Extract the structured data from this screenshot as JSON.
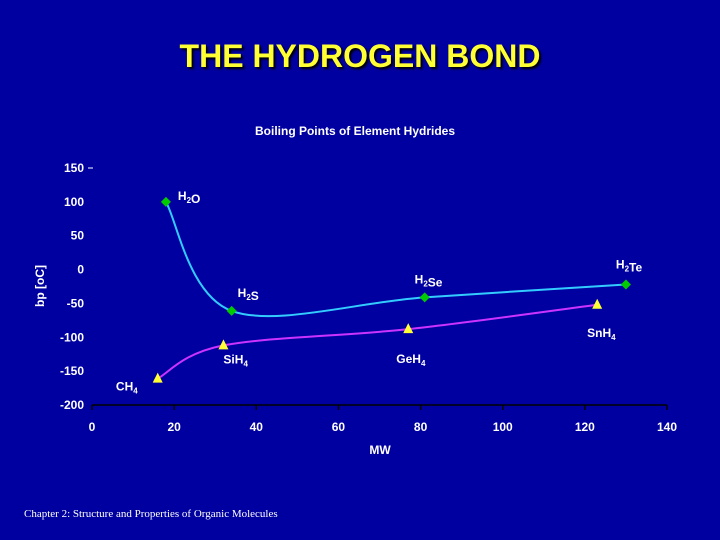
{
  "slide_title": "THE HYDROGEN BOND",
  "footer": "Chapter 2: Structure and Properties of Organic Molecules",
  "colors": {
    "background": "#0000a0",
    "title": "#ffff33",
    "series_o": "#33ccff",
    "series_c": "#cc33ff",
    "diamond_marker": "#00cc00",
    "triangle_marker": "#ffff33"
  },
  "chart_data": {
    "type": "line",
    "title": "Boiling Points of Element Hydrides",
    "xlabel": "MW",
    "ylabel": "bp [oC]",
    "xlim": [
      0,
      140
    ],
    "ylim": [
      -200,
      150
    ],
    "x_ticks": [
      "0",
      "20",
      "40",
      "60",
      "80",
      "100",
      "120",
      "140"
    ],
    "y_ticks": [
      "150",
      "100",
      "50",
      "0",
      "-50",
      "-100",
      "-150",
      "-200"
    ],
    "grid": false,
    "series": [
      {
        "marker": "diamond",
        "color": "#33ccff",
        "points": [
          {
            "x": 18,
            "y": 100,
            "label": "H₂O"
          },
          {
            "x": 34,
            "y": -61,
            "label": "H₂S"
          },
          {
            "x": 81,
            "y": -41,
            "label": "H₂Se"
          },
          {
            "x": 130,
            "y": -22,
            "label": "H₂Te"
          }
        ]
      },
      {
        "marker": "triangle",
        "color": "#cc33ff",
        "points": [
          {
            "x": 16,
            "y": -161,
            "label": "CH₄"
          },
          {
            "x": 32,
            "y": -112,
            "label": "SiH₄"
          },
          {
            "x": 77,
            "y": -88,
            "label": "GeH₄"
          },
          {
            "x": 123,
            "y": -52,
            "label": "SnH₄"
          }
        ]
      }
    ]
  }
}
